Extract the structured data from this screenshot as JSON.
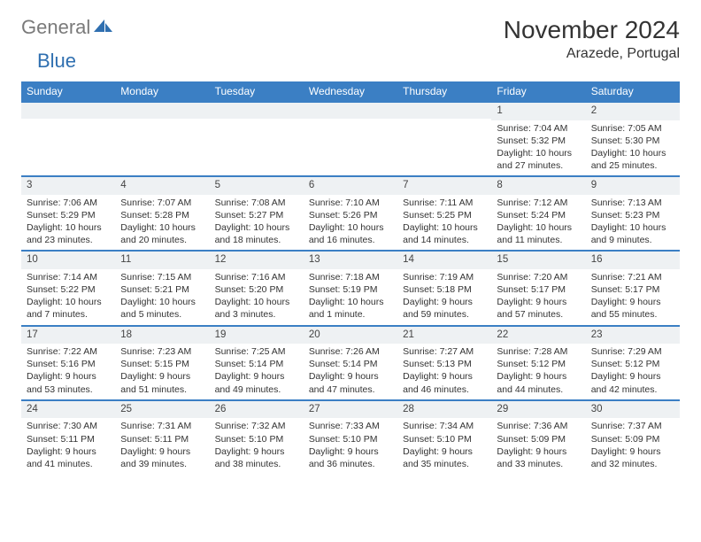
{
  "logo": {
    "text1": "General",
    "text2": "Blue"
  },
  "header": {
    "month_title": "November 2024",
    "location": "Arazede, Portugal"
  },
  "calendar": {
    "weekdays": [
      "Sunday",
      "Monday",
      "Tuesday",
      "Wednesday",
      "Thursday",
      "Friday",
      "Saturday"
    ],
    "header_bg": "#3b7fc4",
    "header_fg": "#ffffff",
    "row_border": "#3b7fc4",
    "daynum_bg": "#eef1f3",
    "weeks": [
      [
        {
          "num": "",
          "lines": []
        },
        {
          "num": "",
          "lines": []
        },
        {
          "num": "",
          "lines": []
        },
        {
          "num": "",
          "lines": []
        },
        {
          "num": "",
          "lines": []
        },
        {
          "num": "1",
          "lines": [
            "Sunrise: 7:04 AM",
            "Sunset: 5:32 PM",
            "Daylight: 10 hours",
            "and 27 minutes."
          ]
        },
        {
          "num": "2",
          "lines": [
            "Sunrise: 7:05 AM",
            "Sunset: 5:30 PM",
            "Daylight: 10 hours",
            "and 25 minutes."
          ]
        }
      ],
      [
        {
          "num": "3",
          "lines": [
            "Sunrise: 7:06 AM",
            "Sunset: 5:29 PM",
            "Daylight: 10 hours",
            "and 23 minutes."
          ]
        },
        {
          "num": "4",
          "lines": [
            "Sunrise: 7:07 AM",
            "Sunset: 5:28 PM",
            "Daylight: 10 hours",
            "and 20 minutes."
          ]
        },
        {
          "num": "5",
          "lines": [
            "Sunrise: 7:08 AM",
            "Sunset: 5:27 PM",
            "Daylight: 10 hours",
            "and 18 minutes."
          ]
        },
        {
          "num": "6",
          "lines": [
            "Sunrise: 7:10 AM",
            "Sunset: 5:26 PM",
            "Daylight: 10 hours",
            "and 16 minutes."
          ]
        },
        {
          "num": "7",
          "lines": [
            "Sunrise: 7:11 AM",
            "Sunset: 5:25 PM",
            "Daylight: 10 hours",
            "and 14 minutes."
          ]
        },
        {
          "num": "8",
          "lines": [
            "Sunrise: 7:12 AM",
            "Sunset: 5:24 PM",
            "Daylight: 10 hours",
            "and 11 minutes."
          ]
        },
        {
          "num": "9",
          "lines": [
            "Sunrise: 7:13 AM",
            "Sunset: 5:23 PM",
            "Daylight: 10 hours",
            "and 9 minutes."
          ]
        }
      ],
      [
        {
          "num": "10",
          "lines": [
            "Sunrise: 7:14 AM",
            "Sunset: 5:22 PM",
            "Daylight: 10 hours",
            "and 7 minutes."
          ]
        },
        {
          "num": "11",
          "lines": [
            "Sunrise: 7:15 AM",
            "Sunset: 5:21 PM",
            "Daylight: 10 hours",
            "and 5 minutes."
          ]
        },
        {
          "num": "12",
          "lines": [
            "Sunrise: 7:16 AM",
            "Sunset: 5:20 PM",
            "Daylight: 10 hours",
            "and 3 minutes."
          ]
        },
        {
          "num": "13",
          "lines": [
            "Sunrise: 7:18 AM",
            "Sunset: 5:19 PM",
            "Daylight: 10 hours",
            "and 1 minute."
          ]
        },
        {
          "num": "14",
          "lines": [
            "Sunrise: 7:19 AM",
            "Sunset: 5:18 PM",
            "Daylight: 9 hours",
            "and 59 minutes."
          ]
        },
        {
          "num": "15",
          "lines": [
            "Sunrise: 7:20 AM",
            "Sunset: 5:17 PM",
            "Daylight: 9 hours",
            "and 57 minutes."
          ]
        },
        {
          "num": "16",
          "lines": [
            "Sunrise: 7:21 AM",
            "Sunset: 5:17 PM",
            "Daylight: 9 hours",
            "and 55 minutes."
          ]
        }
      ],
      [
        {
          "num": "17",
          "lines": [
            "Sunrise: 7:22 AM",
            "Sunset: 5:16 PM",
            "Daylight: 9 hours",
            "and 53 minutes."
          ]
        },
        {
          "num": "18",
          "lines": [
            "Sunrise: 7:23 AM",
            "Sunset: 5:15 PM",
            "Daylight: 9 hours",
            "and 51 minutes."
          ]
        },
        {
          "num": "19",
          "lines": [
            "Sunrise: 7:25 AM",
            "Sunset: 5:14 PM",
            "Daylight: 9 hours",
            "and 49 minutes."
          ]
        },
        {
          "num": "20",
          "lines": [
            "Sunrise: 7:26 AM",
            "Sunset: 5:14 PM",
            "Daylight: 9 hours",
            "and 47 minutes."
          ]
        },
        {
          "num": "21",
          "lines": [
            "Sunrise: 7:27 AM",
            "Sunset: 5:13 PM",
            "Daylight: 9 hours",
            "and 46 minutes."
          ]
        },
        {
          "num": "22",
          "lines": [
            "Sunrise: 7:28 AM",
            "Sunset: 5:12 PM",
            "Daylight: 9 hours",
            "and 44 minutes."
          ]
        },
        {
          "num": "23",
          "lines": [
            "Sunrise: 7:29 AM",
            "Sunset: 5:12 PM",
            "Daylight: 9 hours",
            "and 42 minutes."
          ]
        }
      ],
      [
        {
          "num": "24",
          "lines": [
            "Sunrise: 7:30 AM",
            "Sunset: 5:11 PM",
            "Daylight: 9 hours",
            "and 41 minutes."
          ]
        },
        {
          "num": "25",
          "lines": [
            "Sunrise: 7:31 AM",
            "Sunset: 5:11 PM",
            "Daylight: 9 hours",
            "and 39 minutes."
          ]
        },
        {
          "num": "26",
          "lines": [
            "Sunrise: 7:32 AM",
            "Sunset: 5:10 PM",
            "Daylight: 9 hours",
            "and 38 minutes."
          ]
        },
        {
          "num": "27",
          "lines": [
            "Sunrise: 7:33 AM",
            "Sunset: 5:10 PM",
            "Daylight: 9 hours",
            "and 36 minutes."
          ]
        },
        {
          "num": "28",
          "lines": [
            "Sunrise: 7:34 AM",
            "Sunset: 5:10 PM",
            "Daylight: 9 hours",
            "and 35 minutes."
          ]
        },
        {
          "num": "29",
          "lines": [
            "Sunrise: 7:36 AM",
            "Sunset: 5:09 PM",
            "Daylight: 9 hours",
            "and 33 minutes."
          ]
        },
        {
          "num": "30",
          "lines": [
            "Sunrise: 7:37 AM",
            "Sunset: 5:09 PM",
            "Daylight: 9 hours",
            "and 32 minutes."
          ]
        }
      ]
    ]
  }
}
